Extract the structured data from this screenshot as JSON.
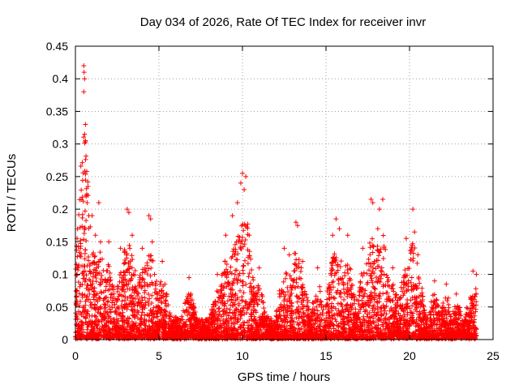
{
  "chart_data": {
    "type": "scatter",
    "title": "Day 034 of 2026, Rate Of TEC Index for receiver invr",
    "xlabel": "GPS time / hours",
    "ylabel": "ROTI / TECUs",
    "xlim": [
      0,
      25
    ],
    "ylim": [
      0,
      0.45
    ],
    "xticks": [
      0,
      5,
      10,
      15,
      20,
      25
    ],
    "yticks": [
      0,
      0.05,
      0.1,
      0.15,
      0.2,
      0.25,
      0.3,
      0.35,
      0.4,
      0.45
    ],
    "xtick_labels": [
      "0",
      "5",
      "10",
      "15",
      "20",
      "25"
    ],
    "ytick_labels": [
      "0",
      "0.05",
      "0.1",
      "0.15",
      "0.2",
      "0.25",
      "0.3",
      "0.35",
      "0.4",
      "0.45"
    ],
    "grid": true,
    "marker": "+",
    "color": "#ff0000",
    "data_range_hours": [
      0,
      24
    ],
    "peaks": [
      {
        "t": 0.1,
        "roti": 0.155
      },
      {
        "t": 0.3,
        "roti": 0.14
      },
      {
        "t": 0.5,
        "roti": 0.42
      },
      {
        "t": 0.52,
        "roti": 0.41
      },
      {
        "t": 0.55,
        "roti": 0.4
      },
      {
        "t": 0.5,
        "roti": 0.38
      },
      {
        "t": 0.6,
        "roti": 0.33
      },
      {
        "t": 0.55,
        "roti": 0.315
      },
      {
        "t": 0.6,
        "roti": 0.305
      },
      {
        "t": 0.65,
        "roti": 0.22
      },
      {
        "t": 0.7,
        "roti": 0.21
      },
      {
        "t": 0.8,
        "roti": 0.19
      },
      {
        "t": 1.0,
        "roti": 0.19
      },
      {
        "t": 1.4,
        "roti": 0.21
      },
      {
        "t": 1.2,
        "roti": 0.16
      },
      {
        "t": 2.0,
        "roti": 0.15
      },
      {
        "t": 2.7,
        "roti": 0.14
      },
      {
        "t": 3.1,
        "roti": 0.2
      },
      {
        "t": 3.2,
        "roti": 0.195
      },
      {
        "t": 3.4,
        "roti": 0.16
      },
      {
        "t": 4.0,
        "roti": 0.14
      },
      {
        "t": 4.4,
        "roti": 0.19
      },
      {
        "t": 4.5,
        "roti": 0.185
      },
      {
        "t": 4.6,
        "roti": 0.15
      },
      {
        "t": 5.2,
        "roti": 0.12
      },
      {
        "t": 6.8,
        "roti": 0.095
      },
      {
        "t": 8.5,
        "roti": 0.1
      },
      {
        "t": 9.0,
        "roti": 0.16
      },
      {
        "t": 9.4,
        "roti": 0.19
      },
      {
        "t": 9.7,
        "roti": 0.21
      },
      {
        "t": 9.9,
        "roti": 0.24
      },
      {
        "t": 10.0,
        "roti": 0.255
      },
      {
        "t": 10.2,
        "roti": 0.25
      },
      {
        "t": 10.1,
        "roti": 0.23
      },
      {
        "t": 10.4,
        "roti": 0.16
      },
      {
        "t": 11.0,
        "roti": 0.11
      },
      {
        "t": 12.5,
        "roti": 0.14
      },
      {
        "t": 12.8,
        "roti": 0.13
      },
      {
        "t": 13.2,
        "roti": 0.18
      },
      {
        "t": 13.3,
        "roti": 0.175
      },
      {
        "t": 13.6,
        "roti": 0.12
      },
      {
        "t": 14.5,
        "roti": 0.11
      },
      {
        "t": 15.4,
        "roti": 0.16
      },
      {
        "t": 15.6,
        "roti": 0.185
      },
      {
        "t": 15.8,
        "roti": 0.17
      },
      {
        "t": 16.3,
        "roti": 0.16
      },
      {
        "t": 17.2,
        "roti": 0.14
      },
      {
        "t": 17.7,
        "roti": 0.215
      },
      {
        "t": 17.8,
        "roti": 0.21
      },
      {
        "t": 18.2,
        "roti": 0.2
      },
      {
        "t": 18.4,
        "roti": 0.215
      },
      {
        "t": 18.1,
        "roti": 0.17
      },
      {
        "t": 19.0,
        "roti": 0.11
      },
      {
        "t": 19.8,
        "roti": 0.155
      },
      {
        "t": 20.2,
        "roti": 0.2
      },
      {
        "t": 20.3,
        "roti": 0.165
      },
      {
        "t": 20.5,
        "roti": 0.13
      },
      {
        "t": 21.5,
        "roti": 0.09
      },
      {
        "t": 22.2,
        "roti": 0.085
      },
      {
        "t": 22.8,
        "roti": 0.07
      },
      {
        "t": 23.8,
        "roti": 0.105
      },
      {
        "t": 24.0,
        "roti": 0.1
      }
    ]
  }
}
